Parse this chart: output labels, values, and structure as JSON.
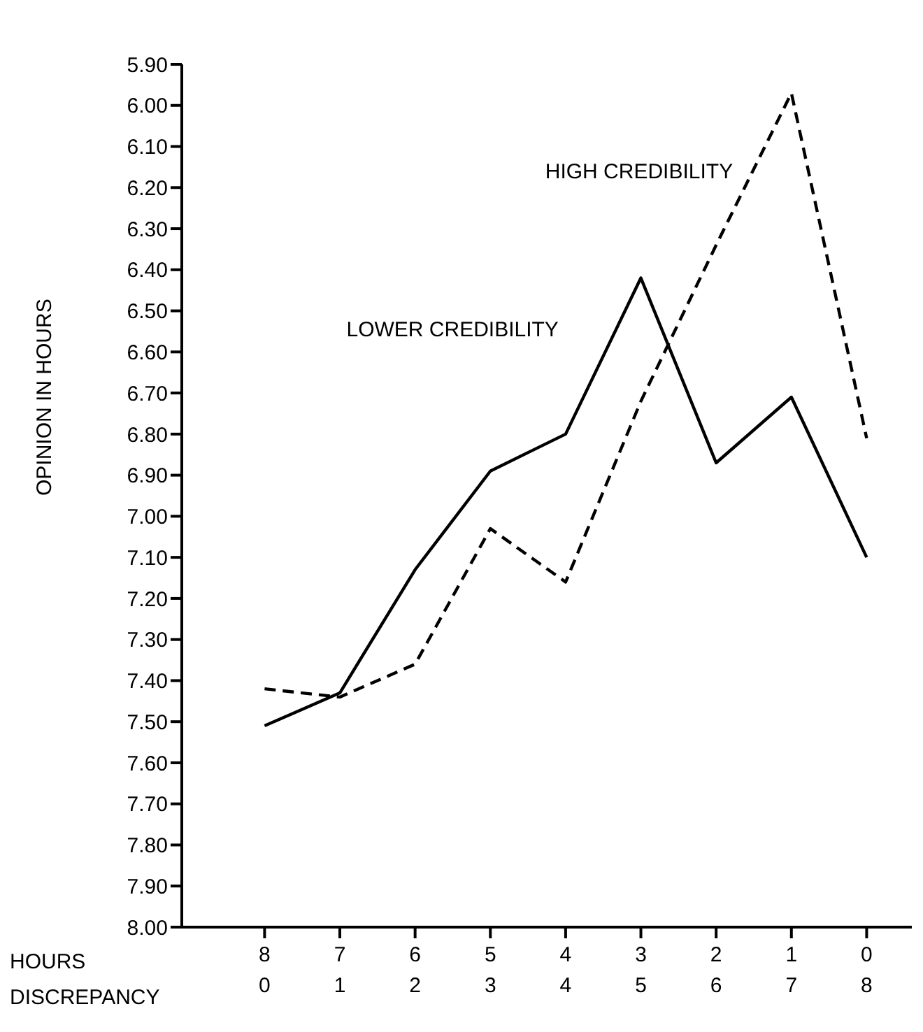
{
  "chart_data": {
    "type": "line",
    "x": [
      0,
      1,
      2,
      3,
      4,
      5,
      6,
      7,
      8
    ],
    "series": [
      {
        "name": "LOWER CREDIBILITY",
        "color": "#000000",
        "line_style": "solid",
        "values": [
          7.51,
          7.43,
          7.13,
          6.89,
          6.8,
          6.42,
          6.87,
          6.71,
          7.1
        ]
      },
      {
        "name": "HIGH CREDIBILITY",
        "color": "#000000",
        "line_style": "dashed",
        "values": [
          7.42,
          7.44,
          7.36,
          7.03,
          7.16,
          6.72,
          6.34,
          5.97,
          6.81
        ]
      }
    ],
    "xlabel": "DISCREPANCY",
    "x2label": "HOURS",
    "ylabel": "OPINION IN HOURS",
    "xlim": [
      -1.1,
      8.6
    ],
    "xticks": [
      0,
      1,
      2,
      3,
      4,
      5,
      6,
      7,
      8
    ],
    "x2lim": [
      9.1,
      -0.6
    ],
    "x2ticks": [
      8,
      7,
      6,
      5,
      4,
      3,
      2,
      1,
      0
    ],
    "ylim": [
      8.0,
      5.9
    ],
    "yticks": [
      {
        "value": 5.9,
        "label": "5.90"
      },
      {
        "value": 6.0,
        "label": "6.00"
      },
      {
        "value": 6.1,
        "label": "6.10"
      },
      {
        "value": 6.2,
        "label": "6.20"
      },
      {
        "value": 6.3,
        "label": "6.30"
      },
      {
        "value": 6.4,
        "label": "6.40"
      },
      {
        "value": 6.5,
        "label": "6.50"
      },
      {
        "value": 6.6,
        "label": "6.60"
      },
      {
        "value": 6.7,
        "label": "6.70"
      },
      {
        "value": 6.8,
        "label": "6.80"
      },
      {
        "value": 6.9,
        "label": "6.90"
      },
      {
        "value": 7.0,
        "label": "7.00"
      },
      {
        "value": 7.1,
        "label": "7.10"
      },
      {
        "value": 7.2,
        "label": "7.20"
      },
      {
        "value": 7.3,
        "label": "7.30"
      },
      {
        "value": 7.4,
        "label": "7.40"
      },
      {
        "value": 7.5,
        "label": "7.50"
      },
      {
        "value": 7.6,
        "label": "7.60"
      },
      {
        "value": 7.7,
        "label": "7.70"
      },
      {
        "value": 7.8,
        "label": "7.80"
      },
      {
        "value": 7.9,
        "label": "7.90"
      },
      {
        "value": 8.0,
        "label": "8.00"
      }
    ],
    "marker": "none",
    "grid": false,
    "legend": false
  }
}
